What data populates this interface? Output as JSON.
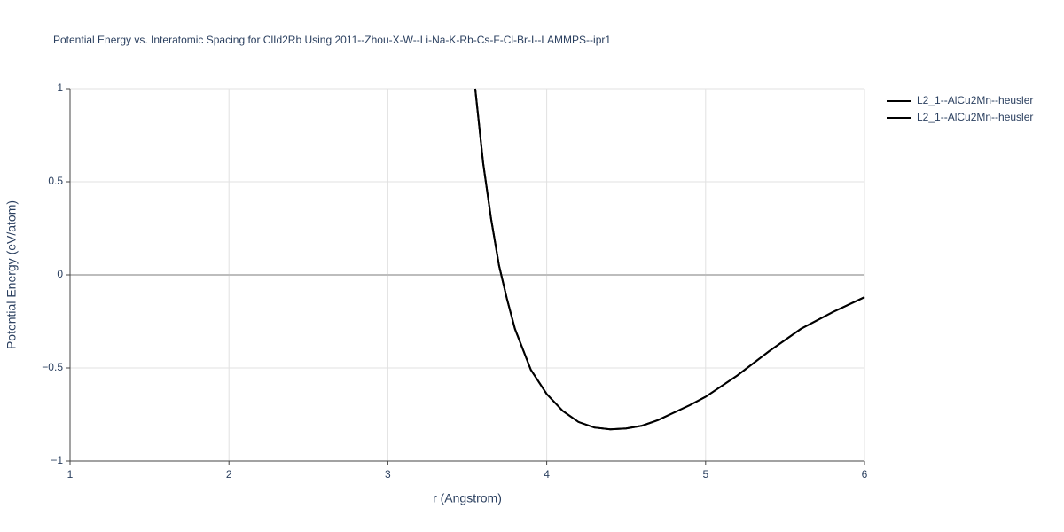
{
  "chart_data": {
    "type": "line",
    "title": "Potential Energy vs. Interatomic Spacing for ClId2Rb Using 2011--Zhou-X-W--Li-Na-K-Rb-Cs-F-Cl-Br-I--LAMMPS--ipr1",
    "x_label": "r (Angstrom)",
    "y_label": "Potential Energy (eV/atom)",
    "x": [
      3.55,
      3.6,
      3.65,
      3.7,
      3.75,
      3.8,
      3.9,
      4.0,
      4.1,
      4.2,
      4.3,
      4.4,
      4.5,
      4.6,
      4.7,
      4.8,
      4.9,
      5.0,
      5.2,
      5.4,
      5.6,
      5.8,
      6.0
    ],
    "series": [
      {
        "name": "L2_1--AlCu2Mn--heusler",
        "color": "#000000",
        "values": [
          1.0,
          0.6,
          0.3,
          0.05,
          -0.13,
          -0.29,
          -0.51,
          -0.64,
          -0.73,
          -0.79,
          -0.82,
          -0.83,
          -0.825,
          -0.81,
          -0.78,
          -0.74,
          -0.7,
          -0.655,
          -0.54,
          -0.41,
          -0.29,
          -0.2,
          -0.12
        ]
      },
      {
        "name": "L2_1--AlCu2Mn--heusler",
        "color": "#000000",
        "values": [
          1.0,
          0.6,
          0.3,
          0.05,
          -0.13,
          -0.29,
          -0.51,
          -0.64,
          -0.73,
          -0.79,
          -0.82,
          -0.83,
          -0.825,
          -0.81,
          -0.78,
          -0.74,
          -0.7,
          -0.655,
          -0.54,
          -0.41,
          -0.29,
          -0.2,
          -0.12
        ]
      }
    ],
    "xlim": [
      1,
      6
    ],
    "xticks": [
      1,
      2,
      3,
      4,
      5,
      6
    ],
    "ylim": [
      -1,
      1
    ],
    "yticks": [
      {
        "value": -1,
        "label": "−1"
      },
      {
        "value": -0.5,
        "label": "−0.5"
      },
      0,
      0.5,
      1
    ],
    "grid": true
  }
}
